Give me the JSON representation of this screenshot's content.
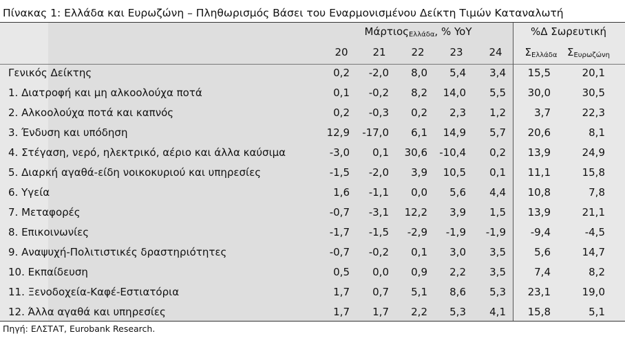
{
  "title": "Πίνακας 1: Ελλάδα και Ευρωζώνη – Πληθωρισμός Βάσει του Εναρμονισμένου Δείκτη Τιμών Καταναλωτή",
  "header": {
    "group1": {
      "text": "Μάρτιος",
      "sub": "Ελλάδα",
      "suffix": ", % YoY"
    },
    "group2": "%Δ Σωρευτική",
    "years": [
      "20",
      "21",
      "22",
      "23",
      "24"
    ],
    "cumulative": [
      {
        "symbol": "Σ",
        "sub": "Ελλάδα"
      },
      {
        "symbol": "Σ",
        "sub": "Ευρωζώνη"
      }
    ]
  },
  "table": {
    "rows": [
      [
        "Γενικός Δείκτης",
        "0,2",
        "-2,0",
        "8,0",
        "5,4",
        "3,4",
        "15,5",
        "20,1"
      ],
      [
        "1. Διατροφή και μη αλκοολούχα ποτά",
        "0,1",
        "-0,2",
        "8,2",
        "14,0",
        "5,5",
        "30,0",
        "30,5"
      ],
      [
        "2. Αλκοολούχα ποτά και καπνός",
        "0,2",
        "-0,3",
        "0,2",
        "2,3",
        "1,2",
        "3,7",
        "22,3"
      ],
      [
        "3. Ένδυση και υπόδηση",
        "12,9",
        "-17,0",
        "6,1",
        "14,9",
        "5,7",
        "20,6",
        "8,1"
      ],
      [
        "4. Στέγαση, νερό, ηλεκτρικό, αέριο και άλλα καύσιμα",
        "-3,0",
        "0,1",
        "30,6",
        "-10,4",
        "0,2",
        "13,9",
        "24,9"
      ],
      [
        "5. Διαρκή αγαθά-είδη νοικοκυριού και υπηρεσίες",
        "-1,5",
        "-2,0",
        "3,9",
        "10,5",
        "0,1",
        "11,1",
        "15,8"
      ],
      [
        "6. Υγεία",
        "1,6",
        "-1,1",
        "0,0",
        "5,6",
        "4,4",
        "10,8",
        "7,8"
      ],
      [
        "7. Μεταφορές",
        "-0,7",
        "-3,1",
        "12,2",
        "3,9",
        "1,5",
        "13,9",
        "21,1"
      ],
      [
        "8. Επικοινωνίες",
        "-1,7",
        "-1,5",
        "-2,9",
        "-1,9",
        "-1,9",
        "-9,4",
        "-4,5"
      ],
      [
        "9. Αναψυχή-Πολιτιστικές δραστηριότητες",
        "-0,7",
        "-0,2",
        "0,1",
        "3,0",
        "3,5",
        "5,6",
        "14,7"
      ],
      [
        "10. Εκπαίδευση",
        "0,5",
        "0,0",
        "0,9",
        "2,2",
        "3,5",
        "7,4",
        "8,2"
      ],
      [
        "11. Ξενοδοχεία-Καφέ-Εστιατόρια",
        "1,7",
        "0,7",
        "5,1",
        "8,6",
        "5,3",
        "23,1",
        "19,0"
      ],
      [
        "12. Άλλα αγαθά και υπηρεσίες",
        "1,7",
        "1,7",
        "2,2",
        "5,3",
        "4,1",
        "15,8",
        "5,1"
      ]
    ]
  },
  "source": "Πηγή: ΕΛΣΤΑΤ, Eurobank Research."
}
